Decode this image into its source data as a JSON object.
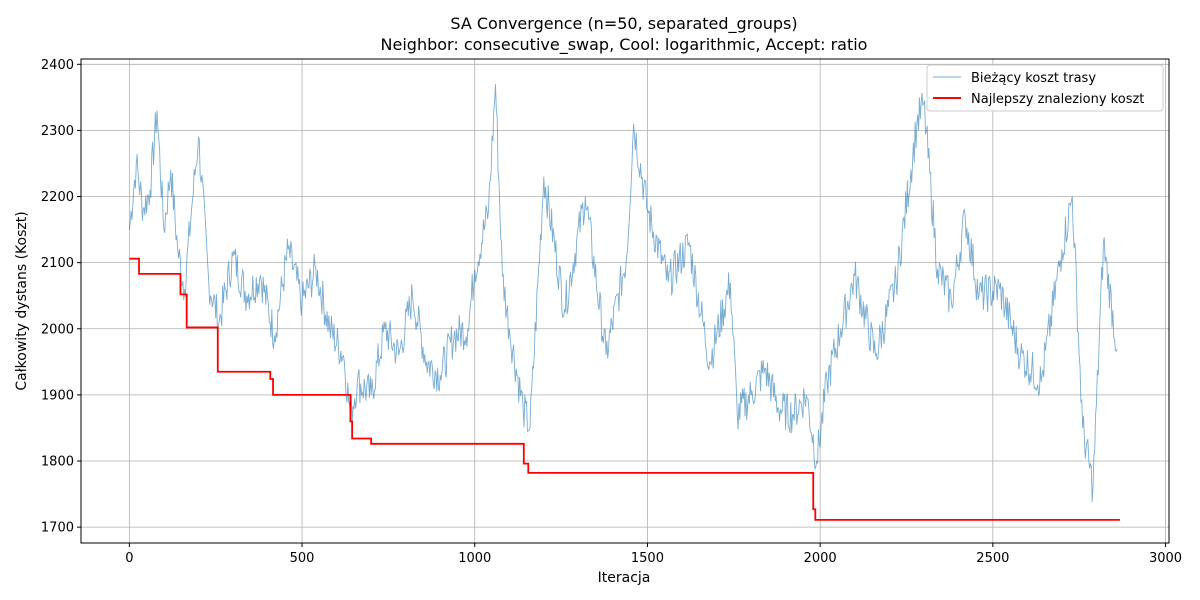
{
  "chart_data": {
    "type": "line",
    "title": "SA Convergence (n=50, separated_groups)",
    "subtitle": "Neighbor: consecutive_swap, Cool: logarithmic, Accept: ratio",
    "xlabel": "Iteracja",
    "ylabel": "Całkowity dystans (Koszt)",
    "xlim": [
      -140,
      3010
    ],
    "ylim": [
      1676,
      2408
    ],
    "xticks": [
      0,
      500,
      1000,
      1500,
      2000,
      2500,
      3000
    ],
    "yticks": [
      1700,
      1800,
      1900,
      2000,
      2100,
      2200,
      2300,
      2400
    ],
    "grid": true,
    "legend_position": "top-right",
    "colors": {
      "current": "#1f77b4",
      "best": "#ff0000"
    },
    "series": [
      {
        "name": "Bieżący koszt trasy",
        "style": "thin-line",
        "x": [
          0,
          20,
          40,
          60,
          80,
          100,
          120,
          140,
          160,
          180,
          200,
          230,
          260,
          300,
          340,
          380,
          420,
          460,
          500,
          540,
          580,
          620,
          640,
          660,
          700,
          740,
          780,
          820,
          860,
          900,
          940,
          980,
          1000,
          1040,
          1060,
          1080,
          1100,
          1140,
          1160,
          1200,
          1260,
          1320,
          1380,
          1440,
          1460,
          1500,
          1560,
          1620,
          1680,
          1740,
          1760,
          1800,
          1840,
          1880,
          1920,
          1960,
          1990,
          2020,
          2060,
          2100,
          2160,
          2220,
          2280,
          2300,
          2340,
          2380,
          2420,
          2460,
          2520,
          2580,
          2640,
          2700,
          2730,
          2760,
          2790,
          2820,
          2860
        ],
        "y": [
          2150,
          2250,
          2180,
          2210,
          2330,
          2150,
          2240,
          2120,
          2060,
          2180,
          2290,
          2070,
          2010,
          2110,
          2050,
          2080,
          1990,
          2120,
          2040,
          2090,
          2000,
          1960,
          1870,
          1920,
          1900,
          2000,
          1960,
          2050,
          1950,
          1930,
          1990,
          2000,
          2090,
          2180,
          2370,
          2080,
          2000,
          1880,
          1850,
          2230,
          2030,
          2200,
          1960,
          2110,
          2310,
          2180,
          2070,
          2130,
          1950,
          2070,
          1870,
          1900,
          1940,
          1880,
          1870,
          1900,
          1800,
          1920,
          2000,
          2080,
          1960,
          2070,
          2310,
          2340,
          2090,
          2040,
          2170,
          2050,
          2060,
          1960,
          1920,
          2120,
          2200,
          1850,
          1760,
          2130,
          1970
        ]
      },
      {
        "name": "Najlepszy znaleziony koszt",
        "style": "step",
        "x": [
          0,
          28,
          148,
          166,
          256,
          408,
          416,
          640,
          645,
          700,
          1142,
          1155,
          1980,
          1986,
          2868
        ],
        "y": [
          2106,
          2083,
          2052,
          2002,
          1935,
          1924,
          1900,
          1860,
          1834,
          1826,
          1796,
          1782,
          1727,
          1711,
          1711
        ]
      }
    ]
  }
}
